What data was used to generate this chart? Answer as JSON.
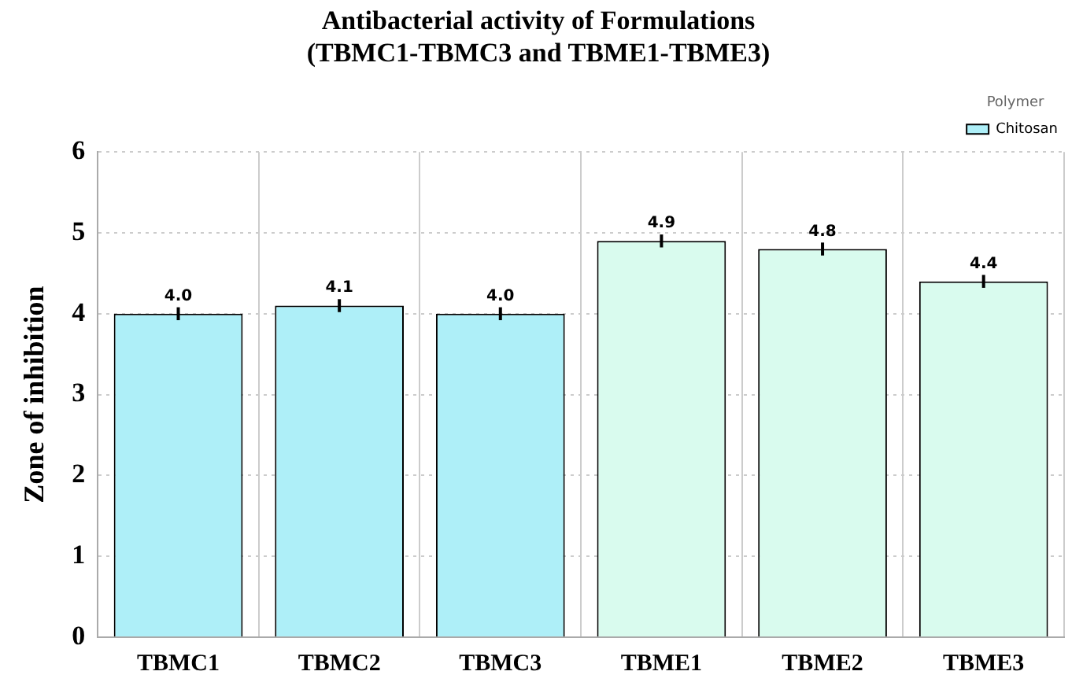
{
  "chart_data": {
    "type": "bar",
    "title": [
      "Antibacterial activity of Formulations",
      "(TBMC1-TBMC3 and TBME1-TBME3)"
    ],
    "ylabel": "Zone of inhibition",
    "categories": [
      "TBMC1",
      "TBMC2",
      "TBMC3",
      "TBME1",
      "TBME2",
      "TBME3"
    ],
    "series": [
      {
        "name": "Chitosan",
        "color": "#aeeff8",
        "values": [
          4.0,
          4.1,
          4.0,
          null,
          null,
          null
        ],
        "errors": [
          0.08,
          0.08,
          0.08,
          null,
          null,
          null
        ],
        "value_labels": [
          "4.0",
          "4.1",
          "4.0",
          null,
          null,
          null
        ]
      },
      {
        "color": "#d9fbee",
        "values": [
          null,
          null,
          null,
          4.9,
          4.8,
          4.4
        ],
        "errors": [
          null,
          null,
          null,
          0.08,
          0.08,
          0.08
        ],
        "value_labels": [
          null,
          null,
          null,
          "4.9",
          "4.8",
          "4.4"
        ]
      }
    ],
    "ylim": [
      0,
      6
    ],
    "yticks": [
      0,
      1,
      2,
      3,
      4,
      5,
      6
    ],
    "grid": true,
    "legend": "top right",
    "legend_title": "Polymer"
  }
}
